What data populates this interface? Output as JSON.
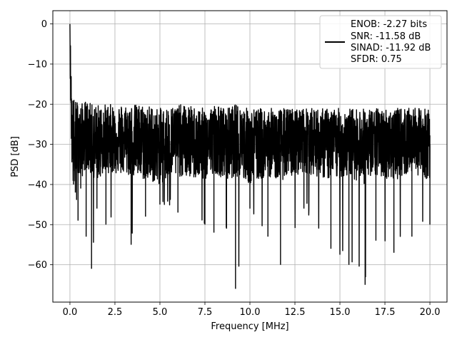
{
  "chart_data": {
    "type": "line",
    "title": "",
    "xlabel": "Frequency [MHz]",
    "ylabel": "PSD [dB]",
    "xlim": [
      -0.95,
      20.95
    ],
    "ylim": [
      -69.3,
      3.3
    ],
    "xticks": [
      0.0,
      2.5,
      5.0,
      7.5,
      10.0,
      12.5,
      15.0,
      17.5,
      20.0
    ],
    "xtick_labels": [
      "0.0",
      "2.5",
      "5.0",
      "7.5",
      "10.0",
      "12.5",
      "15.0",
      "17.5",
      "20.0"
    ],
    "yticks": [
      0,
      -10,
      -20,
      -30,
      -40,
      -50,
      -60
    ],
    "ytick_labels": [
      "0",
      "−10",
      "−20",
      "−30",
      "−40",
      "−50",
      "−60"
    ],
    "grid": true,
    "legend_position": "top-right",
    "series": [
      {
        "name": "",
        "color": "#000000",
        "x": [
          0.0,
          0.05,
          0.1,
          0.2,
          0.3,
          0.45,
          0.6,
          0.9,
          1.2,
          1.5,
          2.0,
          3.4,
          4.2,
          5.0,
          6.0,
          7.5,
          8.0,
          8.7,
          9.2,
          10.0,
          11.0,
          11.7,
          13.0,
          14.5,
          15.5,
          16.4,
          17.0,
          18.0,
          19.0,
          20.0
        ],
        "y": [
          0,
          -15,
          -26,
          -33,
          -31,
          -28,
          -30,
          -27,
          -29,
          -30,
          -28,
          -29,
          -30,
          -31,
          -29,
          -30,
          -28,
          -30,
          -29,
          -31,
          -29,
          -30,
          -28,
          -30,
          -29,
          -31,
          -29,
          -30,
          -28,
          -30
        ],
        "upper_envelope": [
          0,
          -8,
          -17,
          -18,
          -19,
          -19,
          -20,
          -19,
          -20,
          -20,
          -20,
          -20,
          -20,
          -21,
          -20,
          -21,
          -20,
          -21,
          -20,
          -21,
          -21,
          -21,
          -21,
          -21,
          -21,
          -21,
          -21,
          -21,
          -21,
          -21
        ],
        "lower_envelope": [
          0,
          -22,
          -37,
          -40,
          -42,
          -49,
          -41,
          -53,
          -61,
          -46,
          -50,
          -55,
          -48,
          -45,
          -47,
          -50,
          -52,
          -51,
          -66,
          -46,
          -53,
          -60,
          -46,
          -56,
          -60,
          -65,
          -54,
          -57,
          -53,
          -50
        ]
      }
    ],
    "legend": {
      "entries": [
        "ENOB: -2.27 bits",
        "SNR: -11.58 dB",
        "SINAD: -11.92 dB",
        "SFDR: 0.75"
      ]
    }
  }
}
